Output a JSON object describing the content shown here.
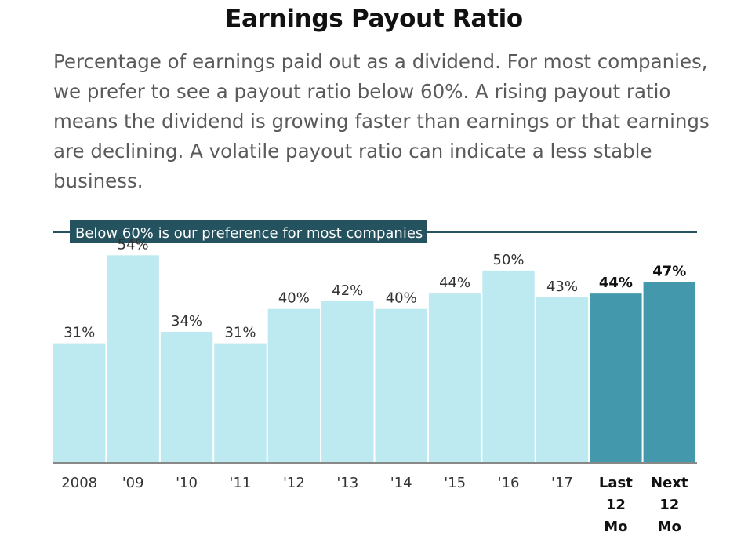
{
  "header": {
    "title": "Earnings Payout Ratio",
    "description": "Percentage of earnings paid out as a dividend. For most companies, we prefer to see a payout ratio below 60%. A rising payout ratio means the dividend is growing faster than earnings or that earnings are declining. A volatile payout ratio can indicate a less stable business."
  },
  "colors": {
    "bar": "#bde9f0",
    "bar_highlight": "#4498ab",
    "preference_line": "#24525f",
    "preference_label_bg": "#24525f",
    "axis": "#888888"
  },
  "chart_data": {
    "type": "bar",
    "categories": [
      "2008",
      "'09",
      "'10",
      "'11",
      "'12",
      "'13",
      "'14",
      "'15",
      "'16",
      "'17",
      "Last 12 Mo",
      "Next 12 Mo"
    ],
    "category_lines": [
      [
        "2008"
      ],
      [
        "'09"
      ],
      [
        "'10"
      ],
      [
        "'11"
      ],
      [
        "'12"
      ],
      [
        "'13"
      ],
      [
        "'14"
      ],
      [
        "'15"
      ],
      [
        "'16"
      ],
      [
        "'17"
      ],
      [
        "Last",
        "12",
        "Mo"
      ],
      [
        "Next",
        "12",
        "Mo"
      ]
    ],
    "values": [
      31,
      54,
      34,
      31,
      40,
      42,
      40,
      44,
      50,
      43,
      44,
      47
    ],
    "value_labels": [
      "31%",
      "54%",
      "34%",
      "31%",
      "40%",
      "42%",
      "40%",
      "44%",
      "50%",
      "43%",
      "44%",
      "47%"
    ],
    "highlighted": [
      false,
      false,
      false,
      false,
      false,
      false,
      false,
      false,
      false,
      false,
      true,
      true
    ],
    "ylim": [
      0,
      60
    ],
    "reference_line": {
      "value": 60,
      "label": "Below 60% is our preference for most companies"
    },
    "grid": false,
    "legend": "none"
  }
}
